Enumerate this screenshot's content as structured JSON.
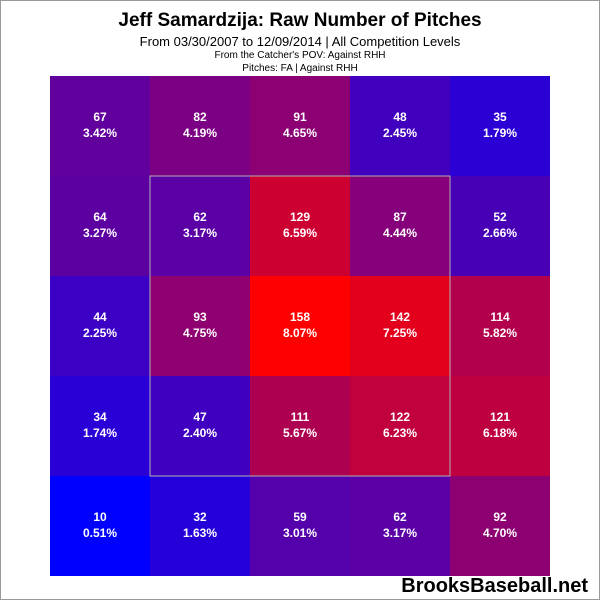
{
  "title": "Jeff Samardzija: Raw Number of Pitches",
  "subtitle": "From 03/30/2007 to 12/09/2014 | All Competition Levels",
  "note1": "From the Catcher's POV:  Against RHH",
  "note2": "Pitches:  FA  |  Against RHH",
  "watermark": "BrooksBaseball.net",
  "chart_data": {
    "type": "heatmap",
    "title": "Jeff Samardzija: Raw Number of Pitches",
    "rows": 5,
    "cols": 5,
    "cells": [
      [
        {
          "count": 67,
          "pct": "3.42%"
        },
        {
          "count": 82,
          "pct": "4.19%"
        },
        {
          "count": 91,
          "pct": "4.65%"
        },
        {
          "count": 48,
          "pct": "2.45%"
        },
        {
          "count": 35,
          "pct": "1.79%"
        }
      ],
      [
        {
          "count": 64,
          "pct": "3.27%"
        },
        {
          "count": 62,
          "pct": "3.17%"
        },
        {
          "count": 129,
          "pct": "6.59%"
        },
        {
          "count": 87,
          "pct": "4.44%"
        },
        {
          "count": 52,
          "pct": "2.66%"
        }
      ],
      [
        {
          "count": 44,
          "pct": "2.25%"
        },
        {
          "count": 93,
          "pct": "4.75%"
        },
        {
          "count": 158,
          "pct": "8.07%"
        },
        {
          "count": 142,
          "pct": "7.25%"
        },
        {
          "count": 114,
          "pct": "5.82%"
        }
      ],
      [
        {
          "count": 34,
          "pct": "1.74%"
        },
        {
          "count": 47,
          "pct": "2.40%"
        },
        {
          "count": 111,
          "pct": "5.67%"
        },
        {
          "count": 122,
          "pct": "6.23%"
        },
        {
          "count": 121,
          "pct": "6.18%"
        }
      ],
      [
        {
          "count": 10,
          "pct": "0.51%"
        },
        {
          "count": 32,
          "pct": "1.63%"
        },
        {
          "count": 59,
          "pct": "3.01%"
        },
        {
          "count": 62,
          "pct": "3.17%"
        },
        {
          "count": 92,
          "pct": "4.70%"
        }
      ]
    ],
    "strike_zone": {
      "rows": [
        1,
        3
      ],
      "cols": [
        1,
        3
      ]
    },
    "color_scale": {
      "low": "#0000ff",
      "high": "#ff0000",
      "min": 10,
      "max": 158
    }
  }
}
